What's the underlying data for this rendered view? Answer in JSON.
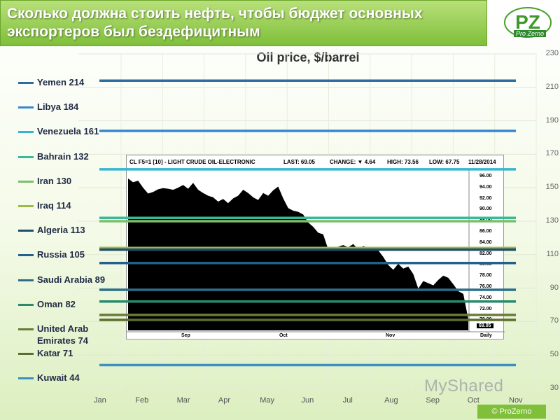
{
  "slide_title": {
    "line1": "Сколько должна стоить нефть, чтобы бюджет основных",
    "line2": "экспортеров был бездефицитным"
  },
  "logo": {
    "mark": "PZ",
    "sub": "Pro Zerno"
  },
  "chart_data": {
    "type": "line",
    "title": "Oil price, $/barrel",
    "categories": [
      "Jan",
      "Feb",
      "Mar",
      "Apr",
      "May",
      "Jun",
      "Jul",
      "Aug",
      "Sep",
      "Oct",
      "Nov"
    ],
    "y_ticks": [
      30,
      50,
      70,
      90,
      110,
      130,
      150,
      170,
      190,
      210,
      230
    ],
    "ylim": [
      30,
      230
    ],
    "legend_placement": "left",
    "grid": true,
    "breakeven": [
      {
        "name": "Yemen",
        "label": "Yemen 214",
        "value": 214,
        "color": "#2e6da4"
      },
      {
        "name": "Libya",
        "label": "Libya 184",
        "value": 184,
        "color": "#3589cf"
      },
      {
        "name": "Venezuela",
        "label": "Venezuela 161",
        "value": 161,
        "color": "#34b6cf"
      },
      {
        "name": "Bahrain",
        "label": "Bahrain 132",
        "value": 132,
        "color": "#3ab89a"
      },
      {
        "name": "Iran",
        "label": "Iran 130",
        "value": 130,
        "color": "#7bbf6a"
      },
      {
        "name": "Iraq",
        "label": "Iraq 114",
        "value": 114,
        "color": "#a0b84a"
      },
      {
        "name": "Algeria",
        "label": "Algeria 113",
        "value": 113,
        "color": "#1d4e6e"
      },
      {
        "name": "Russia",
        "label": "Russia 105",
        "value": 105,
        "color": "#24608e"
      },
      {
        "name": "Saudi Arabia",
        "label": "Saudi Arabia 89",
        "value": 89,
        "color": "#2a6f8a"
      },
      {
        "name": "Oman",
        "label": "Oman 82",
        "value": 82,
        "color": "#2a8a6a"
      },
      {
        "name": "United Arab Emirates",
        "label": "United Arab Emirates 74",
        "label_lines": [
          "United Arab",
          "Emirates 74"
        ],
        "value": 74,
        "color": "#6b7a3a"
      },
      {
        "name": "Katar",
        "label": "Katar 71",
        "value": 71,
        "color": "#5d6e2e"
      },
      {
        "name": "Kuwait",
        "label": "Kuwait 44",
        "value": 44,
        "color": "#3b8fc4"
      }
    ],
    "inset": {
      "header": {
        "symbol": "CL F5=1 [10] - LIGHT CRUDE OIL-ELECTRONIC",
        "last": "LAST: 69.05",
        "change": "CHANGE: ▼ 4.64",
        "high": "HIGH: 73.56",
        "low": "LOW: 67.75",
        "date": "11/28/2014"
      },
      "x_labels": [
        "Sep",
        "Oct",
        "Nov",
        "Daily"
      ],
      "price_labels": [
        "96.00",
        "94.00",
        "92.00",
        "90.00",
        "88.00",
        "86.00",
        "84.00",
        "82.00",
        "80.00",
        "78.00",
        "76.00",
        "74.00",
        "72.00",
        "70.00"
      ],
      "last_price": "69.05",
      "ylim": [
        67,
        97
      ],
      "series": [
        {
          "name": "CL F5=1",
          "values": [
            95.3,
            94.6,
            94.9,
            93.6,
            92.5,
            92.8,
            93.3,
            93.5,
            93.4,
            93.2,
            93.6,
            94.1,
            93.4,
            94.5,
            93.2,
            92.6,
            92.1,
            91.8,
            91.0,
            91.5,
            90.7,
            91.6,
            92.1,
            93.2,
            92.6,
            91.8,
            91.3,
            92.6,
            92.1,
            93.1,
            93.8,
            91.6,
            89.8,
            89.3,
            89.1,
            88.6,
            87.1,
            86.3,
            85.2,
            84.9,
            82.1,
            81.9,
            82.6,
            82.9,
            82.5,
            83.1,
            82.1,
            82.7,
            82.4,
            82.6,
            81.9,
            80.7,
            79.2,
            78.3,
            79.4,
            78.5,
            78.9,
            77.5,
            74.8,
            76.2,
            75.8,
            75.4,
            76.4,
            77.2,
            76.8,
            75.6,
            74.3,
            73.8,
            69.1
          ]
        }
      ]
    }
  },
  "watermark": "MyShared",
  "copyright": "© ProZerno"
}
